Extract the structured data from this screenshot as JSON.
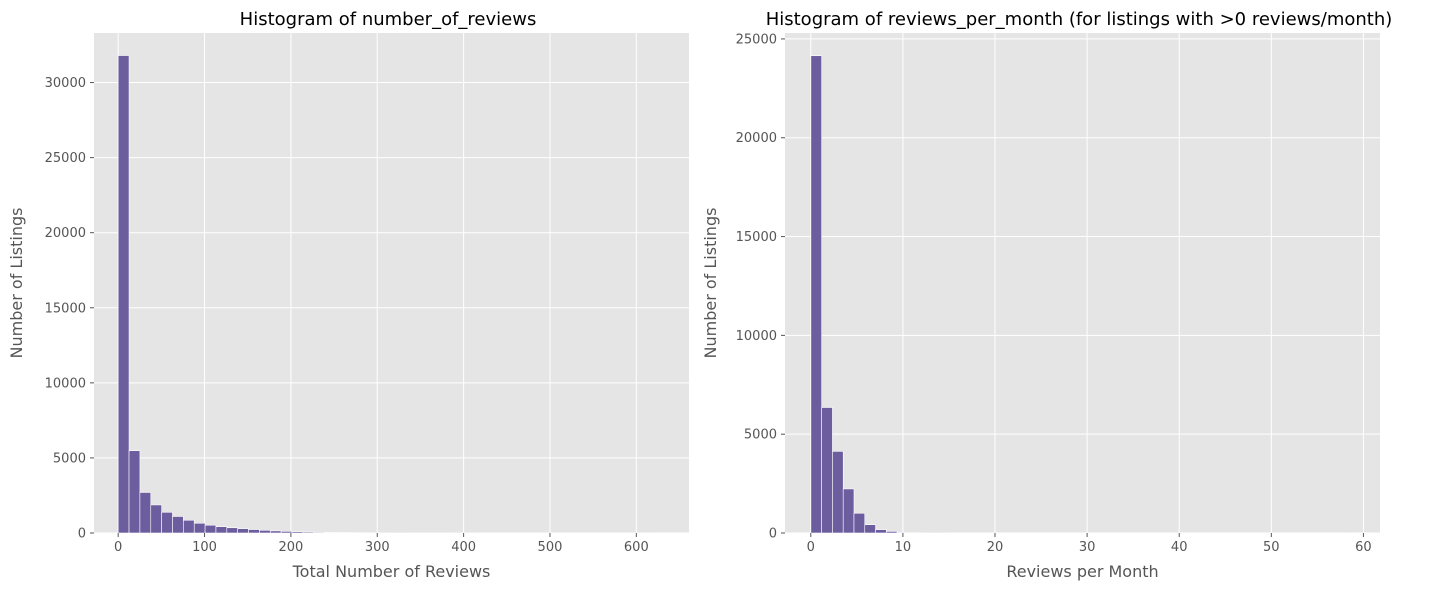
{
  "chart_data": [
    {
      "type": "bar",
      "title": "Histogram of number_of_reviews",
      "xlabel": "Total Number of Reviews",
      "ylabel": "Number of Listings",
      "xlim": [
        -28,
        661
      ],
      "ylim": [
        0,
        33300
      ],
      "xticks": [
        0,
        100,
        200,
        300,
        400,
        500,
        600
      ],
      "yticks": [
        0,
        5000,
        10000,
        15000,
        20000,
        25000,
        30000
      ],
      "grid": true,
      "bin_start": 0,
      "bin_width": 12.58,
      "values": [
        31800,
        5480,
        2700,
        1870,
        1380,
        1100,
        850,
        650,
        520,
        420,
        350,
        290,
        230,
        180,
        140,
        110,
        85,
        65,
        50,
        40,
        30,
        22,
        16,
        12,
        9,
        7,
        5,
        4,
        3,
        3,
        2,
        2,
        2,
        1,
        1,
        1,
        1,
        1,
        1,
        1,
        1,
        1,
        1,
        1,
        1,
        1,
        1,
        1,
        1,
        1
      ],
      "bar_color": "#6c5d9e",
      "plot_bg": "#e5e5e5"
    },
    {
      "type": "bar",
      "title": "Histogram of reviews_per_month (for listings with >0 reviews/month)",
      "xlabel": "Reviews per Month",
      "ylabel": "Number of Listings",
      "xlim": [
        -2.8,
        61.8
      ],
      "ylim": [
        0,
        25300
      ],
      "xticks": [
        0,
        10,
        20,
        30,
        40,
        50,
        60
      ],
      "yticks": [
        0,
        5000,
        10000,
        15000,
        20000,
        25000
      ],
      "grid": true,
      "bin_start": 0.01,
      "bin_width": 1.17,
      "values": [
        24150,
        6350,
        4130,
        2230,
        1000,
        420,
        170,
        80,
        35,
        15,
        8,
        4,
        2,
        1,
        1,
        1,
        1,
        0,
        0,
        0,
        0,
        0,
        0,
        0,
        0,
        0,
        0,
        0,
        0,
        0,
        0,
        0,
        0,
        0,
        0,
        0,
        0,
        0,
        0,
        0,
        0,
        0,
        0,
        0,
        0,
        0,
        0,
        0,
        0,
        1
      ],
      "bar_color": "#6c5d9e",
      "plot_bg": "#e5e5e5"
    }
  ]
}
